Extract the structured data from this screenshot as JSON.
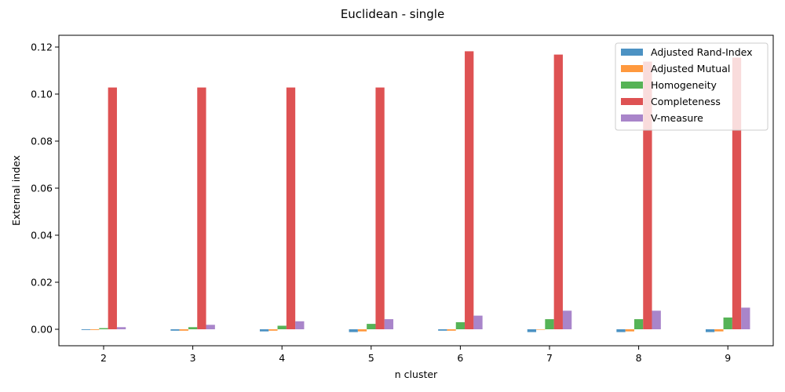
{
  "chart_data": {
    "type": "bar",
    "title": "Euclidean - single",
    "xlabel": "n cluster",
    "ylabel": "External index",
    "categories": [
      "2",
      "3",
      "4",
      "5",
      "6",
      "7",
      "8",
      "9"
    ],
    "ylim": [
      -0.007,
      0.125
    ],
    "yticks": [
      "0.00",
      "0.02",
      "0.04",
      "0.06",
      "0.08",
      "0.10",
      "0.12"
    ],
    "ytick_values": [
      0.0,
      0.02,
      0.04,
      0.06,
      0.08,
      0.1,
      0.12
    ],
    "grid": false,
    "legend_position": "top-right",
    "series": [
      {
        "name": "Adjusted Rand-Index",
        "color": "#1f77b4",
        "values": [
          -0.0003,
          -0.0006,
          -0.0009,
          -0.0012,
          -0.0006,
          -0.0012,
          -0.0012,
          -0.0012
        ]
      },
      {
        "name": "Adjusted Mutual",
        "color": "#ff7f0e",
        "values": [
          -0.0003,
          -0.0006,
          -0.0006,
          -0.0009,
          -0.0006,
          0.0,
          -0.0009,
          -0.0009
        ]
      },
      {
        "name": "Homogeneity",
        "color": "#2ca02c",
        "values": [
          0.0005,
          0.0009,
          0.0015,
          0.0023,
          0.003,
          0.0043,
          0.0043,
          0.005
        ]
      },
      {
        "name": "Completeness",
        "color": "#d62728",
        "values": [
          0.1028,
          0.1028,
          0.1028,
          0.1028,
          0.1182,
          0.1168,
          0.1138,
          0.1155
        ]
      },
      {
        "name": "V-measure",
        "color": "#9467bd",
        "values": [
          0.0009,
          0.0019,
          0.0034,
          0.0043,
          0.0058,
          0.0079,
          0.0079,
          0.0092
        ]
      }
    ]
  }
}
